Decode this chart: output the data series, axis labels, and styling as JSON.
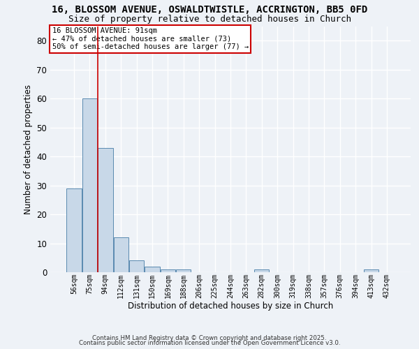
{
  "title": "16, BLOSSOM AVENUE, OSWALDTWISTLE, ACCRINGTON, BB5 0FD",
  "subtitle": "Size of property relative to detached houses in Church",
  "xlabel": "Distribution of detached houses by size in Church",
  "ylabel": "Number of detached properties",
  "categories": [
    "56sqm",
    "75sqm",
    "94sqm",
    "112sqm",
    "131sqm",
    "150sqm",
    "169sqm",
    "188sqm",
    "206sqm",
    "225sqm",
    "244sqm",
    "263sqm",
    "282sqm",
    "300sqm",
    "319sqm",
    "338sqm",
    "357sqm",
    "376sqm",
    "394sqm",
    "413sqm",
    "432sqm"
  ],
  "values": [
    29,
    60,
    43,
    12,
    4,
    2,
    1,
    1,
    0,
    0,
    0,
    0,
    1,
    0,
    0,
    0,
    0,
    0,
    0,
    1,
    0
  ],
  "bar_color": "#c8d8e8",
  "bar_edge_color": "#5a8ab0",
  "red_line_index": 1.5,
  "ylim": [
    0,
    85
  ],
  "yticks": [
    0,
    10,
    20,
    30,
    40,
    50,
    60,
    70,
    80
  ],
  "annotation_line1": "16 BLOSSOM AVENUE: 91sqm",
  "annotation_line2": "← 47% of detached houses are smaller (73)",
  "annotation_line3": "50% of semi-detached houses are larger (77) →",
  "annotation_box_color": "#ffffff",
  "annotation_border_color": "#cc0000",
  "footer_line1": "Contains HM Land Registry data © Crown copyright and database right 2025.",
  "footer_line2": "Contains public sector information licensed under the Open Government Licence v3.0.",
  "background_color": "#eef2f7",
  "grid_color": "#ffffff",
  "title_fontsize": 10,
  "subtitle_fontsize": 9
}
